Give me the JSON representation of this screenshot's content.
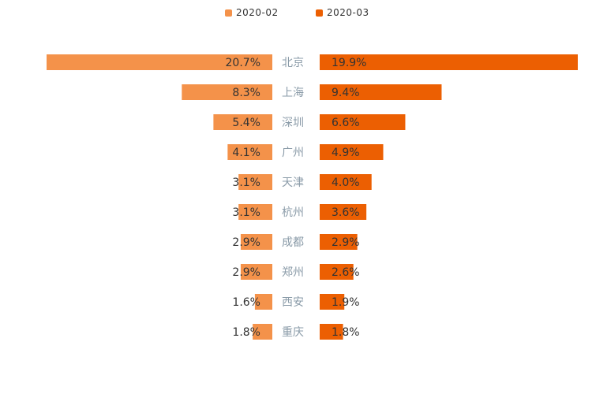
{
  "chart_data": {
    "type": "bar",
    "orientation": "horizontal-butterfly",
    "categories": [
      "北京",
      "上海",
      "深圳",
      "广州",
      "天津",
      "杭州",
      "成都",
      "郑州",
      "西安",
      "重庆"
    ],
    "series": [
      {
        "name": "2020-02",
        "color": "#f4924a",
        "side": "left",
        "values": [
          20.7,
          8.3,
          5.4,
          4.1,
          3.1,
          3.1,
          2.9,
          2.9,
          1.6,
          1.8
        ],
        "labels": [
          "20.7%",
          "8.3%",
          "5.4%",
          "4.1%",
          "3.1%",
          "3.1%",
          "2.9%",
          "2.9%",
          "1.6%",
          "1.8%"
        ]
      },
      {
        "name": "2020-03",
        "color": "#ec5f02",
        "side": "right",
        "values": [
          19.9,
          9.4,
          6.6,
          4.9,
          4.0,
          3.6,
          2.9,
          2.6,
          1.9,
          1.8
        ],
        "labels": [
          "19.9%",
          "9.4%",
          "6.6%",
          "4.9%",
          "4.0%",
          "3.6%",
          "2.9%",
          "2.6%",
          "1.9%",
          "1.8%"
        ]
      }
    ],
    "legend_position": "top-center"
  }
}
